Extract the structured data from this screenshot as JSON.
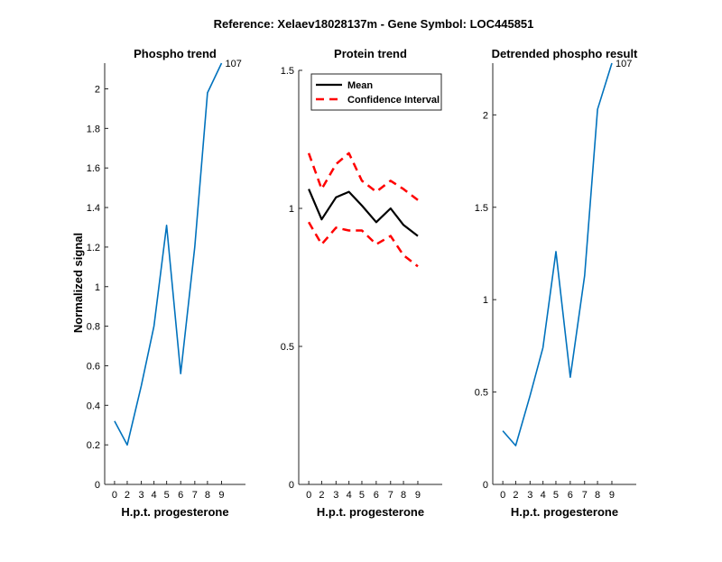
{
  "figure": {
    "title": "Reference:  Xelaev18028137m - Gene Symbol:  LOC445851"
  },
  "chart_data": [
    {
      "type": "line",
      "title": "Phospho trend",
      "xlabel": "H.p.t. progesterone",
      "ylabel": "Normalized signal",
      "xticks": [
        0,
        2,
        3,
        4,
        5,
        6,
        7,
        8,
        9
      ],
      "yticks": [
        "0",
        "0.2",
        "0.4",
        "0.6",
        "0.8",
        "1",
        "1.2",
        "1.4",
        "1.6",
        "1.8",
        "2"
      ],
      "ytick_values": [
        0,
        0.2,
        0.4,
        0.6,
        0.8,
        1,
        1.2,
        1.4,
        1.6,
        1.8,
        2
      ],
      "ylim": [
        0,
        2.13
      ],
      "series": [
        {
          "color": "#0072BD",
          "style": "solid",
          "values": [
            0.32,
            0.2,
            0.5,
            0.8,
            1.31,
            0.56,
            1.2,
            1.98,
            2.13
          ]
        }
      ],
      "annotation": "107"
    },
    {
      "type": "line",
      "title": "Protein trend",
      "xlabel": "H.p.t. progesterone",
      "ylabel": "",
      "xticks": [
        0,
        2,
        3,
        4,
        5,
        6,
        7,
        8,
        9
      ],
      "yticks": [
        "0",
        "0.5",
        "1",
        "1.5"
      ],
      "ytick_values": [
        0,
        0.5,
        1,
        1.5
      ],
      "ylim": [
        0,
        1.5
      ],
      "legend": "top-left",
      "series": [
        {
          "name": "Mean",
          "color": "#000000",
          "style": "solid",
          "values": [
            1.07,
            0.96,
            1.04,
            1.06,
            1.01,
            0.95,
            1.0,
            0.94,
            0.9
          ]
        },
        {
          "name": "Confidence Interval",
          "color": "#FF0000",
          "style": "dashed",
          "values": [
            1.2,
            1.07,
            1.16,
            1.2,
            1.1,
            1.06,
            1.1,
            1.07,
            1.03
          ]
        },
        {
          "name": "",
          "color": "#FF0000",
          "style": "dashed",
          "in_legend": false,
          "values": [
            0.95,
            0.87,
            0.93,
            0.92,
            0.92,
            0.87,
            0.9,
            0.83,
            0.79
          ]
        }
      ]
    },
    {
      "type": "line",
      "title": "Detrended phospho result",
      "xlabel": "H.p.t. progesterone",
      "ylabel": "",
      "xticks": [
        0,
        2,
        3,
        4,
        5,
        6,
        7,
        8,
        9
      ],
      "yticks": [
        "0",
        "0.5",
        "1",
        "1.5",
        "2"
      ],
      "ytick_values": [
        0,
        0.5,
        1,
        1.5,
        2
      ],
      "ylim": [
        0,
        2.28
      ],
      "series": [
        {
          "color": "#0072BD",
          "style": "solid",
          "values": [
            0.29,
            0.21,
            0.48,
            0.74,
            1.26,
            0.58,
            1.13,
            2.03,
            2.28
          ]
        }
      ],
      "annotation": "107"
    }
  ]
}
